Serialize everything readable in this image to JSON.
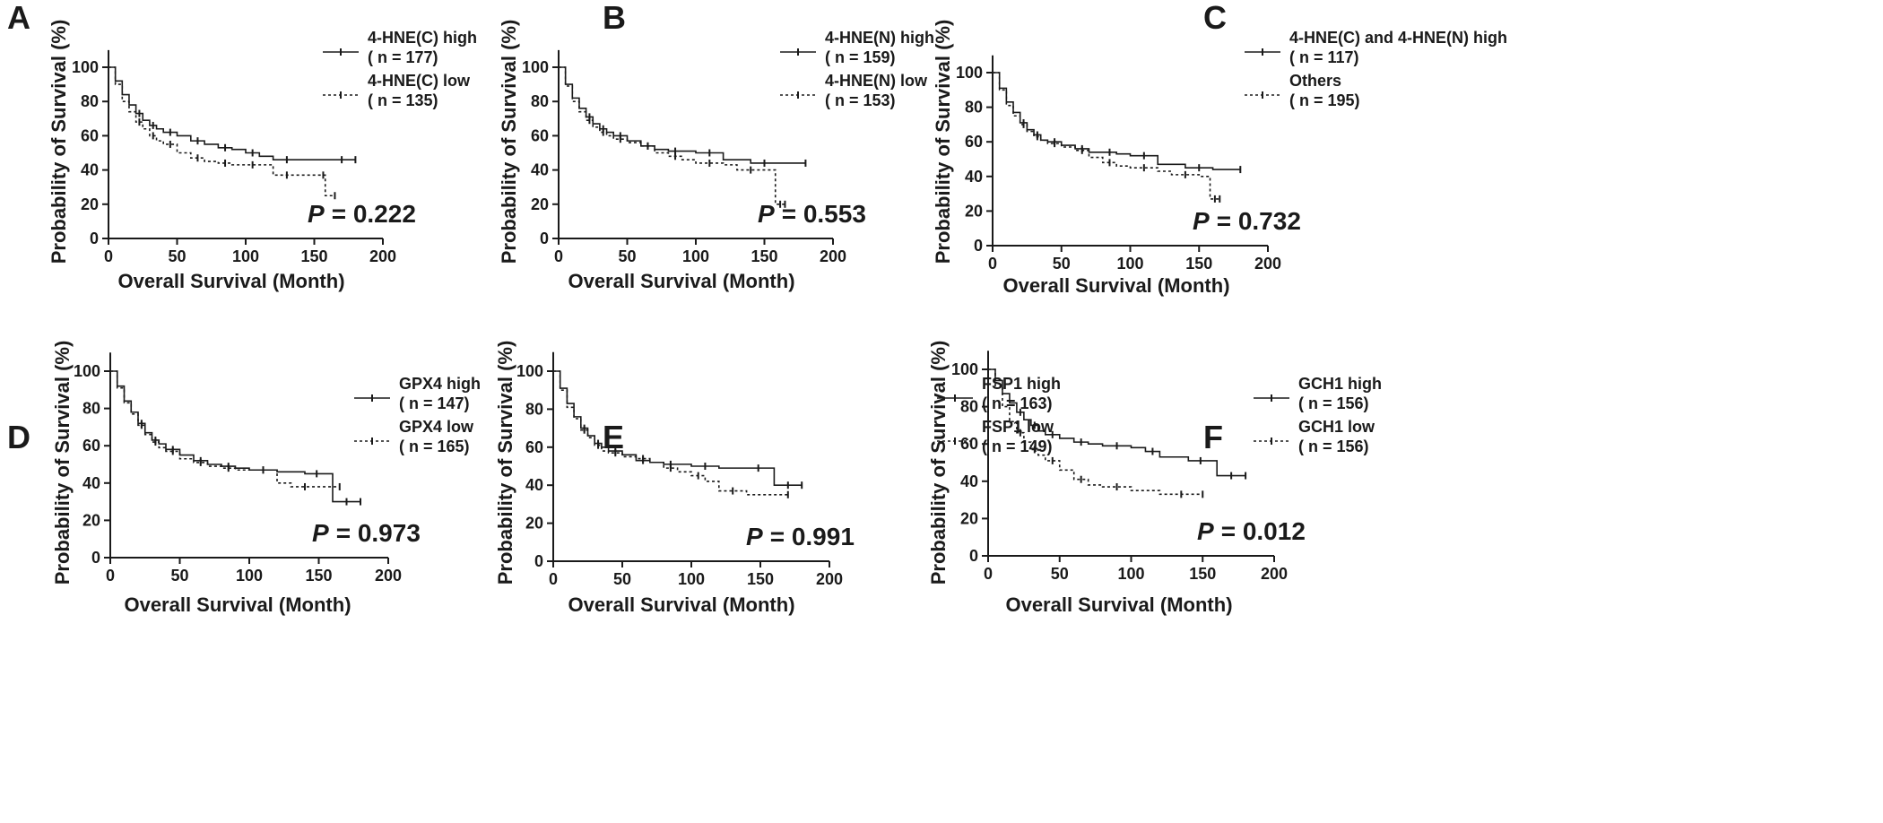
{
  "chart_data": [
    {
      "type": "line",
      "panel": "A",
      "xlabel": "Overall Survival (Month)",
      "ylabel": "Probability of Survival (%)",
      "xlim": [
        0,
        200
      ],
      "ylim": [
        0,
        110
      ],
      "xticks": [
        "0",
        "50",
        "100",
        "150",
        "200"
      ],
      "yticks": [
        "0",
        "20",
        "40",
        "60",
        "80",
        "100"
      ],
      "p_prefix": "P",
      "p_value": "= 0.222",
      "series": [
        {
          "name": "4-HNE(C) high",
          "n_label": "( n = 177)",
          "style": "solid",
          "x": [
            0,
            5,
            10,
            15,
            20,
            25,
            30,
            35,
            40,
            50,
            60,
            70,
            80,
            90,
            100,
            110,
            120,
            140,
            160,
            180
          ],
          "y": [
            100,
            92,
            84,
            78,
            73,
            69,
            66,
            64,
            62,
            60,
            57,
            55,
            53,
            52,
            50,
            48,
            46,
            46,
            46,
            46
          ]
        },
        {
          "name": "4-HNE(C) low",
          "n_label": "( n = 135)",
          "style": "dotted",
          "x": [
            0,
            5,
            10,
            15,
            20,
            25,
            30,
            35,
            40,
            50,
            60,
            70,
            80,
            90,
            100,
            110,
            120,
            140,
            155,
            158,
            165
          ],
          "y": [
            100,
            90,
            80,
            74,
            68,
            64,
            60,
            57,
            55,
            50,
            47,
            45,
            44,
            43,
            43,
            43,
            37,
            37,
            37,
            25,
            25
          ]
        }
      ]
    },
    {
      "type": "line",
      "panel": "B",
      "xlabel": "Overall Survival (Month)",
      "ylabel": "Probability of Survival (%)",
      "xlim": [
        0,
        200
      ],
      "ylim": [
        0,
        110
      ],
      "xticks": [
        "0",
        "50",
        "100",
        "150",
        "200"
      ],
      "yticks": [
        "0",
        "20",
        "40",
        "60",
        "80",
        "100"
      ],
      "p_prefix": "P",
      "p_value": "= 0.553",
      "series": [
        {
          "name": "4-HNE(N) high",
          "n_label": "( n = 159)",
          "style": "solid",
          "x": [
            0,
            5,
            10,
            15,
            20,
            25,
            30,
            35,
            40,
            50,
            60,
            70,
            80,
            90,
            100,
            120,
            140,
            160,
            180
          ],
          "y": [
            100,
            90,
            82,
            76,
            71,
            67,
            64,
            62,
            60,
            57,
            54,
            52,
            51,
            51,
            50,
            46,
            44,
            44,
            44
          ]
        },
        {
          "name": "4-HNE(N) low",
          "n_label": "( n = 153)",
          "style": "dotted",
          "x": [
            0,
            5,
            10,
            15,
            20,
            25,
            30,
            35,
            40,
            50,
            60,
            70,
            80,
            90,
            100,
            120,
            130,
            150,
            158,
            165
          ],
          "y": [
            100,
            89,
            80,
            74,
            69,
            65,
            62,
            60,
            58,
            56,
            54,
            50,
            48,
            46,
            44,
            43,
            40,
            40,
            20,
            20
          ]
        }
      ]
    },
    {
      "type": "line",
      "panel": "C",
      "xlabel": "Overall Survival (Month)",
      "ylabel": "Probability of Survival (%)",
      "xlim": [
        0,
        200
      ],
      "ylim": [
        0,
        110
      ],
      "xticks": [
        "0",
        "50",
        "100",
        "150",
        "200"
      ],
      "yticks": [
        "0",
        "20",
        "40",
        "60",
        "80",
        "100"
      ],
      "p_prefix": "P",
      "p_value": "= 0.732",
      "series": [
        {
          "name": "4-HNE(C) and 4-HNE(N) high",
          "n_label": "( n = 117)",
          "style": "solid",
          "x": [
            0,
            5,
            10,
            15,
            20,
            25,
            30,
            35,
            40,
            50,
            60,
            70,
            80,
            90,
            100,
            120,
            140,
            160,
            180
          ],
          "y": [
            100,
            91,
            83,
            77,
            71,
            67,
            64,
            61,
            60,
            58,
            56,
            54,
            54,
            53,
            52,
            47,
            45,
            44,
            44
          ]
        },
        {
          "name": "Others",
          "n_label": "( n = 195)",
          "style": "dotted",
          "x": [
            0,
            5,
            10,
            15,
            20,
            25,
            30,
            35,
            40,
            50,
            60,
            70,
            80,
            90,
            100,
            120,
            130,
            150,
            158,
            165
          ],
          "y": [
            100,
            90,
            81,
            75,
            70,
            66,
            63,
            61,
            59,
            57,
            55,
            51,
            48,
            46,
            45,
            43,
            41,
            40,
            27,
            27
          ]
        }
      ]
    },
    {
      "type": "line",
      "panel": "D",
      "xlabel": "Overall Survival (Month)",
      "ylabel": "Probability of Survival (%)",
      "xlim": [
        0,
        200
      ],
      "ylim": [
        0,
        110
      ],
      "xticks": [
        "0",
        "50",
        "100",
        "150",
        "200"
      ],
      "yticks": [
        "0",
        "20",
        "40",
        "60",
        "80",
        "100"
      ],
      "p_prefix": "P",
      "p_value": "= 0.973",
      "series": [
        {
          "name": "GPX4 high",
          "n_label": "( n = 147)",
          "style": "solid",
          "x": [
            0,
            5,
            10,
            15,
            20,
            25,
            30,
            35,
            40,
            50,
            60,
            70,
            80,
            90,
            100,
            120,
            140,
            157,
            160,
            180
          ],
          "y": [
            100,
            92,
            84,
            78,
            72,
            67,
            63,
            61,
            58,
            55,
            52,
            50,
            49,
            48,
            47,
            46,
            45,
            45,
            30,
            30
          ]
        },
        {
          "name": "GPX4 low",
          "n_label": "( n = 165)",
          "style": "dotted",
          "x": [
            0,
            5,
            10,
            15,
            20,
            25,
            30,
            35,
            40,
            50,
            60,
            70,
            80,
            90,
            100,
            120,
            130,
            150,
            165
          ],
          "y": [
            100,
            91,
            83,
            77,
            71,
            66,
            62,
            59,
            57,
            53,
            51,
            49,
            48,
            47,
            47,
            40,
            38,
            38,
            38
          ]
        }
      ]
    },
    {
      "type": "line",
      "panel": "E",
      "xlabel": "Overall Survival (Month)",
      "ylabel": "Probability of Survival (%)",
      "xlim": [
        0,
        200
      ],
      "ylim": [
        0,
        110
      ],
      "xticks": [
        "0",
        "50",
        "100",
        "150",
        "200"
      ],
      "yticks": [
        "0",
        "20",
        "40",
        "60",
        "80",
        "100"
      ],
      "p_prefix": "P",
      "p_value": "= 0.991",
      "series": [
        {
          "name": "FSP1 high",
          "n_label": "( n = 163)",
          "style": "solid",
          "x": [
            0,
            5,
            10,
            15,
            20,
            25,
            30,
            35,
            40,
            50,
            60,
            70,
            80,
            90,
            100,
            120,
            140,
            157,
            160,
            180
          ],
          "y": [
            100,
            91,
            83,
            76,
            70,
            66,
            62,
            60,
            58,
            56,
            53,
            52,
            51,
            51,
            50,
            49,
            49,
            49,
            40,
            40
          ]
        },
        {
          "name": "FSP1 low",
          "n_label": "( n = 149)",
          "style": "dotted",
          "x": [
            0,
            5,
            10,
            15,
            20,
            25,
            30,
            35,
            40,
            50,
            60,
            70,
            80,
            90,
            100,
            110,
            120,
            140,
            170
          ],
          "y": [
            100,
            90,
            81,
            75,
            69,
            65,
            61,
            58,
            57,
            55,
            54,
            52,
            49,
            47,
            45,
            42,
            37,
            35,
            35
          ]
        }
      ]
    },
    {
      "type": "line",
      "panel": "F",
      "xlabel": "Overall Survival (Month)",
      "ylabel": "Probability of Survival (%)",
      "xlim": [
        0,
        200
      ],
      "ylim": [
        0,
        110
      ],
      "xticks": [
        "0",
        "50",
        "100",
        "150",
        "200"
      ],
      "yticks": [
        "0",
        "20",
        "40",
        "60",
        "80",
        "100"
      ],
      "p_prefix": "P",
      "p_value": "= 0.012",
      "series": [
        {
          "name": "GCH1 high",
          "n_label": "( n = 156)",
          "style": "solid",
          "x": [
            0,
            5,
            10,
            15,
            20,
            25,
            30,
            35,
            40,
            50,
            60,
            70,
            80,
            100,
            110,
            120,
            140,
            157,
            160,
            180
          ],
          "y": [
            100,
            94,
            87,
            82,
            77,
            73,
            70,
            67,
            65,
            63,
            61,
            60,
            59,
            58,
            56,
            53,
            51,
            51,
            43,
            43
          ]
        },
        {
          "name": "GCH1 low",
          "n_label": "( n = 156)",
          "style": "dotted",
          "x": [
            0,
            5,
            10,
            15,
            20,
            25,
            30,
            35,
            40,
            50,
            60,
            70,
            80,
            100,
            120,
            150
          ],
          "y": [
            100,
            90,
            80,
            72,
            66,
            61,
            57,
            54,
            51,
            46,
            41,
            38,
            37,
            35,
            33,
            33
          ]
        }
      ]
    }
  ]
}
